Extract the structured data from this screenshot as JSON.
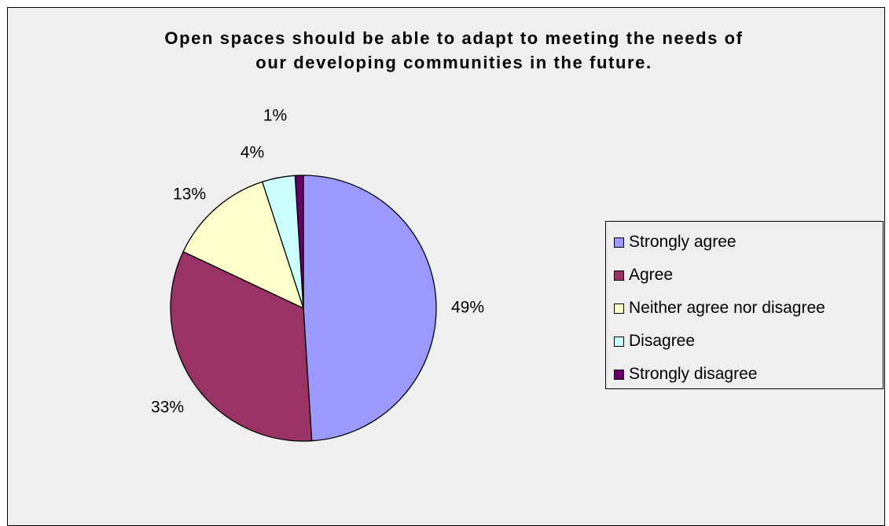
{
  "chart_data": {
    "type": "pie",
    "title": "Open spaces should be able to adapt to meeting the needs of our developing communities in the future.",
    "title_lines": [
      "Open spaces should be able to adapt to meeting the needs of",
      "our developing communities in the future."
    ],
    "categories": [
      "Strongly agree",
      "Agree",
      "Neither agree nor disagree",
      "Disagree",
      "Strongly disagree"
    ],
    "values": [
      49,
      33,
      13,
      4,
      1
    ],
    "data_labels": [
      "49%",
      "33%",
      "13%",
      "4%",
      "1%"
    ],
    "colors": [
      "#9999ff",
      "#993366",
      "#ffffcc",
      "#ccffff",
      "#660066"
    ],
    "legend_placement": "right",
    "background": "#efefef"
  }
}
